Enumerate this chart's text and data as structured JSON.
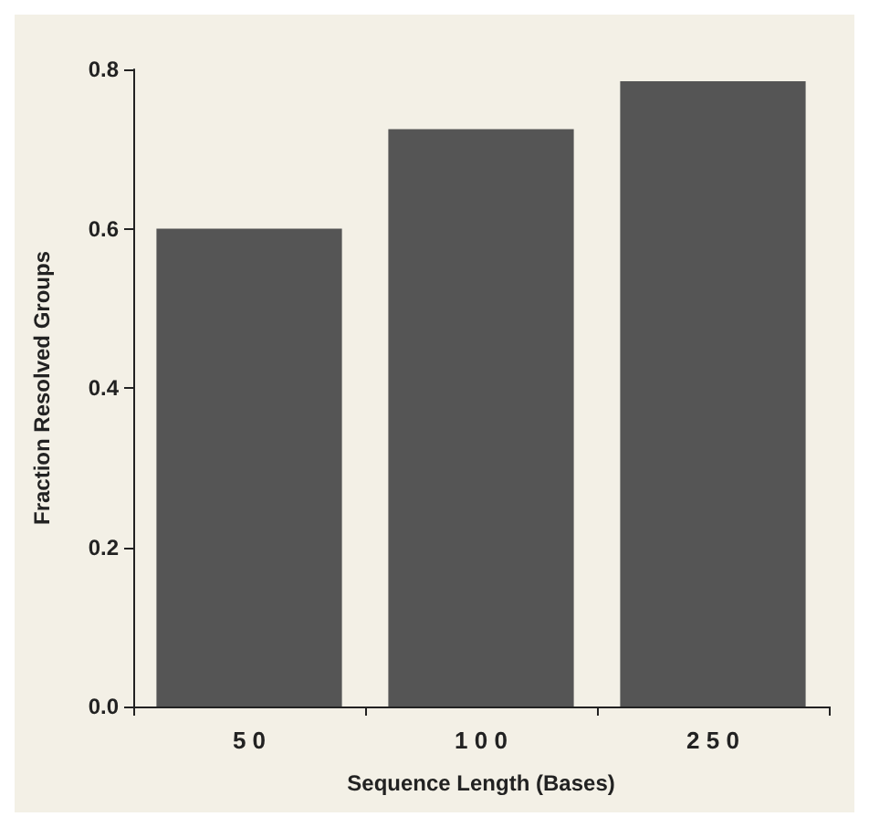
{
  "chart_data": {
    "type": "bar",
    "xlabel": "Sequence Length (Bases)",
    "ylabel": "Fraction Resolved Groups",
    "categories": [
      "5 0",
      "1 0 0",
      "2 5 0"
    ],
    "values": [
      0.6,
      0.725,
      0.785
    ],
    "color": "#555555",
    "ylim": [
      0,
      0.8
    ],
    "yticks": [
      {
        "value": 0,
        "label": "0.0"
      },
      0.2,
      0.4,
      0.6,
      0.8
    ],
    "grid": false
  }
}
